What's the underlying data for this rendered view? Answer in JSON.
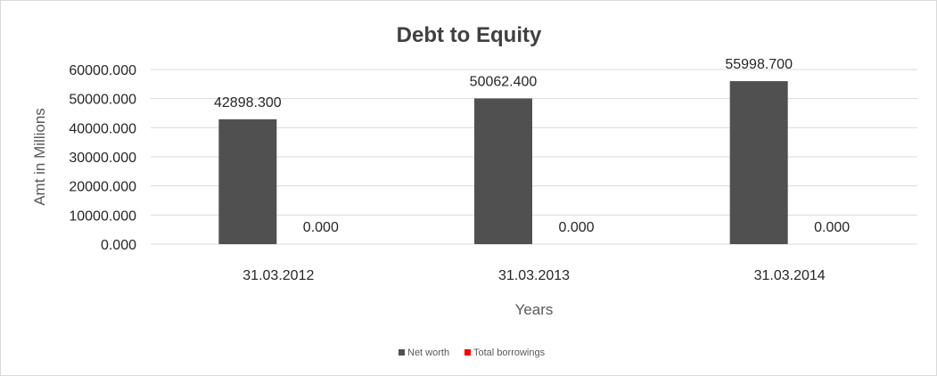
{
  "chart_data": {
    "type": "bar",
    "title": "Debt to Equity",
    "xlabel": "Years",
    "ylabel": "Amt in Millions",
    "categories": [
      "31.03.2012",
      "31.03.2013",
      "31.03.2014"
    ],
    "series": [
      {
        "name": "Net worth",
        "color": "#505050",
        "values": [
          42898.3,
          50062.4,
          55998.7
        ],
        "labels": [
          "42898.300",
          "50062.400",
          "55998.700"
        ]
      },
      {
        "name": "Total borrowings",
        "color": "#ff0000",
        "values": [
          0,
          0,
          0
        ],
        "labels": [
          "0.000",
          "0.000",
          "0.000"
        ]
      }
    ],
    "ylim": [
      0,
      60000
    ],
    "yticks": [
      0,
      10000,
      20000,
      30000,
      40000,
      50000,
      60000
    ],
    "ytick_labels": [
      "0.000",
      "10000.000",
      "20000.000",
      "30000.000",
      "40000.000",
      "50000.000",
      "60000.000"
    ],
    "grid": true,
    "legend_position": "bottom"
  }
}
